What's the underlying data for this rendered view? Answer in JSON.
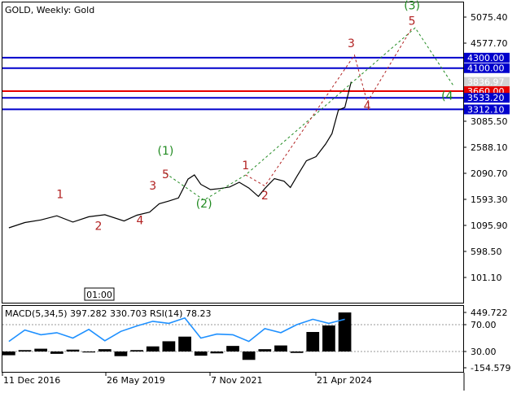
{
  "chart_data": {
    "type": "line",
    "title": "GOLD, Weekly:  Gold",
    "symbol": "GOLD",
    "timeframe": "Weekly",
    "description": "Gold",
    "time_marker": "01:00",
    "xlabels": [
      "11 Dec 2016",
      "26 May 2019",
      "7 Nov 2021",
      "21 Apr 2024"
    ],
    "ylim": [
      -150,
      5300
    ],
    "yticks": [
      5075.4,
      4577.7,
      4080.0,
      3582.0,
      3085.5,
      2588.1,
      2090.7,
      1593.3,
      1095.9,
      598.5,
      101.1
    ],
    "yticklabels": [
      "5075.40",
      "4577.70",
      "4080.00",
      "3582.00",
      "3085.50",
      "2588.10",
      "2090.70",
      "1593.30",
      "1095.90",
      "598.50",
      "101.10"
    ],
    "levels": [
      {
        "value": 4300.0,
        "label": "4300.00",
        "color": "#0000cc"
      },
      {
        "value": 4100.0,
        "label": "4100.00",
        "color": "#0000cc"
      },
      {
        "value": 3660.0,
        "label": "3660.00",
        "color": "#e60000"
      },
      {
        "value": 3533.2,
        "label": "3533.20",
        "color": "#0000cc"
      },
      {
        "value": 3312.1,
        "label": "3312.10",
        "color": "#0000cc"
      }
    ],
    "current_price": {
      "value": 3836.97,
      "label": "3836.97"
    },
    "price_series": {
      "name": "GOLD",
      "x": [
        2015.0,
        2015.5,
        2016.0,
        2016.5,
        2017.0,
        2017.5,
        2018.0,
        2018.6,
        2019.0,
        2019.4,
        2019.7,
        2020.0,
        2020.3,
        2020.6,
        2020.8,
        2021.0,
        2021.3,
        2021.6,
        2021.9,
        2022.2,
        2022.5,
        2022.8,
        2023.0,
        2023.3,
        2023.6,
        2023.8,
        2024.0,
        2024.3,
        2024.6,
        2024.9,
        2025.1,
        2025.3,
        2025.5,
        2025.7
      ],
      "y": [
        1050,
        1150,
        1200,
        1280,
        1160,
        1260,
        1300,
        1180,
        1290,
        1350,
        1510,
        1560,
        1620,
        1980,
        2060,
        1880,
        1780,
        1800,
        1830,
        1920,
        1810,
        1650,
        1800,
        1990,
        1940,
        1820,
        2030,
        2330,
        2410,
        2650,
        2850,
        3300,
        3350,
        3840
      ]
    },
    "wave_labels": [
      {
        "text": "1",
        "x": 2016.6,
        "y": 1620,
        "color": "#b22222"
      },
      {
        "text": "2",
        "x": 2017.8,
        "y": 1010,
        "color": "#b22222"
      },
      {
        "text": "3",
        "x": 2019.5,
        "y": 1780,
        "color": "#b22222"
      },
      {
        "text": "4",
        "x": 2019.1,
        "y": 1120,
        "color": "#b22222"
      },
      {
        "text": "5",
        "x": 2019.9,
        "y": 2000,
        "color": "#b22222"
      },
      {
        "text": "(1)",
        "x": 2019.9,
        "y": 2450,
        "color": "#228b22"
      },
      {
        "text": "(2)",
        "x": 2021.1,
        "y": 1440,
        "color": "#228b22"
      },
      {
        "text": "1",
        "x": 2022.4,
        "y": 2170,
        "color": "#b22222"
      },
      {
        "text": "2",
        "x": 2023.0,
        "y": 1590,
        "color": "#b22222"
      },
      {
        "text": "3",
        "x": 2025.7,
        "y": 4500,
        "color": "#b22222"
      },
      {
        "text": "4",
        "x": 2026.2,
        "y": 3300,
        "color": "#b22222"
      },
      {
        "text": "5",
        "x": 2027.6,
        "y": 4930,
        "color": "#b22222"
      },
      {
        "text": "(3)",
        "x": 2027.6,
        "y": 5220,
        "color": "#228b22"
      },
      {
        "text": "(4",
        "x": 2028.7,
        "y": 3500,
        "color": "#228b22"
      }
    ],
    "green_wave_path": {
      "x": [
        2019.9,
        2021.1,
        2022.4,
        2027.7,
        2028.9
      ],
      "y": [
        2090,
        1580,
        2060,
        4870,
        3760
      ]
    },
    "red_wave_path": {
      "x": [
        2022.4,
        2023.0,
        2025.8,
        2026.2,
        2027.6
      ],
      "y": [
        2060,
        1850,
        4350,
        3450,
        4870
      ]
    },
    "macd_label": "MACD(5,34,5) 397.282 330.703 RSI(14) 78.23",
    "macd_yticklabels": [
      "449.722",
      "70.00",
      "30.00",
      "-154.579"
    ],
    "macd_histogram": {
      "x": [
        2015.0,
        2015.5,
        2016.0,
        2016.5,
        2017.0,
        2017.5,
        2018.0,
        2018.5,
        2019.0,
        2019.5,
        2020.0,
        2020.5,
        2021.0,
        2021.5,
        2022.0,
        2022.5,
        2023.0,
        2023.5,
        2024.0,
        2024.5,
        2025.0,
        2025.5
      ],
      "y": [
        -40,
        15,
        30,
        -25,
        20,
        -10,
        25,
        -50,
        15,
        55,
        110,
        160,
        -45,
        -20,
        60,
        -90,
        25,
        65,
        -15,
        210,
        280,
        420
      ]
    },
    "rsi_series": {
      "name": "RSI(14)",
      "x": [
        2015.0,
        2015.5,
        2016.0,
        2016.5,
        2017.0,
        2017.5,
        2018.0,
        2018.5,
        2019.0,
        2019.5,
        2020.0,
        2020.5,
        2021.0,
        2021.5,
        2022.0,
        2022.5,
        2023.0,
        2023.5,
        2024.0,
        2024.5,
        2025.0,
        2025.5
      ],
      "y": [
        45,
        62,
        55,
        58,
        50,
        63,
        46,
        60,
        68,
        75,
        72,
        80,
        50,
        56,
        55,
        45,
        64,
        58,
        70,
        78,
        72,
        78
      ]
    }
  }
}
